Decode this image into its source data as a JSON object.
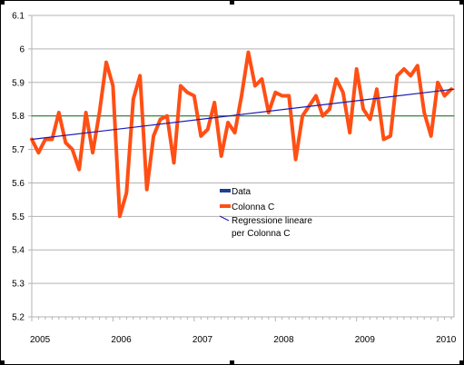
{
  "chart_data": {
    "type": "line",
    "title": "",
    "xlabel": "",
    "ylabel": "",
    "ylim": [
      5.2,
      6.1
    ],
    "yticks": [
      5.2,
      5.3,
      5.4,
      5.5,
      5.6,
      5.7,
      5.8,
      5.9,
      6,
      6.1
    ],
    "ytick_labels": [
      "5.2",
      "5.3",
      "5.4",
      "5.5",
      "5.6",
      "5.7",
      "5.8",
      "5.9",
      "6",
      "6.1"
    ],
    "xlim": [
      2005.0,
      2010.2
    ],
    "xticks": [
      2005,
      2006,
      2007,
      2008,
      2009,
      2010
    ],
    "xtick_labels": [
      "2005",
      "2006",
      "2007",
      "2008",
      "2009",
      "2010"
    ],
    "grid": true,
    "legend_position": "center",
    "series": [
      {
        "name": "Colonna C",
        "color": "#ff4f14",
        "x": [
          2005.0,
          2005.0833,
          2005.1667,
          2005.25,
          2005.3333,
          2005.4167,
          2005.5,
          2005.5833,
          2005.6667,
          2005.75,
          2005.8333,
          2005.9167,
          2006.0,
          2006.0833,
          2006.1667,
          2006.25,
          2006.3333,
          2006.4167,
          2006.5,
          2006.5833,
          2006.6667,
          2006.75,
          2006.8333,
          2006.9167,
          2007.0,
          2007.0833,
          2007.1667,
          2007.25,
          2007.3333,
          2007.4167,
          2007.5,
          2007.5833,
          2007.6667,
          2007.75,
          2007.8333,
          2007.9167,
          2008.0,
          2008.0833,
          2008.1667,
          2008.25,
          2008.3333,
          2008.4167,
          2008.5,
          2008.5833,
          2008.6667,
          2008.75,
          2008.8333,
          2008.9167,
          2009.0,
          2009.0833,
          2009.1667,
          2009.25,
          2009.3333,
          2009.4167,
          2009.5,
          2009.5833,
          2009.6667,
          2009.75,
          2009.8333,
          2009.9167,
          2010.0,
          2010.0833,
          2010.1667
        ],
        "values": [
          5.73,
          5.69,
          5.73,
          5.73,
          5.81,
          5.72,
          5.7,
          5.64,
          5.81,
          5.69,
          5.81,
          5.96,
          5.89,
          5.5,
          5.57,
          5.85,
          5.92,
          5.58,
          5.74,
          5.79,
          5.8,
          5.66,
          5.89,
          5.87,
          5.86,
          5.74,
          5.76,
          5.84,
          5.68,
          5.78,
          5.75,
          5.86,
          5.99,
          5.89,
          5.91,
          5.81,
          5.87,
          5.86,
          5.86,
          5.67,
          5.8,
          5.83,
          5.86,
          5.8,
          5.82,
          5.91,
          5.87,
          5.75,
          5.94,
          5.82,
          5.79,
          5.88,
          5.73,
          5.74,
          5.92,
          5.94,
          5.92,
          5.95,
          5.81,
          5.74,
          5.9,
          5.86,
          5.88
        ]
      },
      {
        "name": "Regressione lineare per Colonna C",
        "color": "#1a1ab3",
        "x": [
          2005.0,
          2010.2
        ],
        "values": [
          5.73,
          5.88
        ]
      },
      {
        "name": "Data",
        "color": "#2e7d32",
        "x": [
          2005.0,
          2010.2
        ],
        "values": [
          5.8,
          5.8
        ]
      }
    ],
    "legend": [
      {
        "name": "Data",
        "color": "#1f3f8f",
        "style": "bar"
      },
      {
        "name": "Colonna C",
        "color": "#ff4f14",
        "style": "bar"
      },
      {
        "name": "Regressione lineare",
        "color": "#1a1ab3",
        "style": "line"
      },
      {
        "name": "per Colonna C",
        "color": "",
        "style": "none"
      }
    ]
  }
}
